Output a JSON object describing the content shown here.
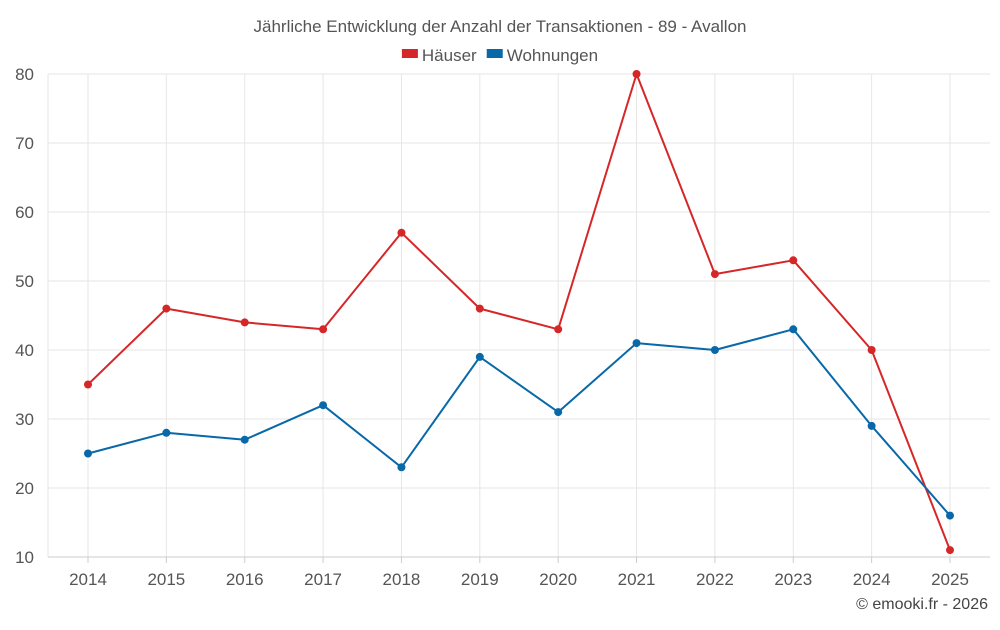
{
  "chart_data": {
    "type": "line",
    "title": "Jährliche Entwicklung der Anzahl der Transaktionen - 89 - Avallon",
    "categories": [
      "2014",
      "2015",
      "2016",
      "2017",
      "2018",
      "2019",
      "2020",
      "2021",
      "2022",
      "2023",
      "2024",
      "2025"
    ],
    "series": [
      {
        "name": "Häuser",
        "color": "#d62728",
        "values": [
          35,
          46,
          44,
          43,
          57,
          46,
          43,
          80,
          51,
          53,
          40,
          11
        ]
      },
      {
        "name": "Wohnungen",
        "color": "#0868a8",
        "values": [
          25,
          28,
          27,
          32,
          23,
          39,
          31,
          41,
          40,
          43,
          29,
          16
        ]
      }
    ],
    "ylim": [
      10,
      80
    ],
    "yticks": [
      10,
      20,
      30,
      40,
      50,
      60,
      70,
      80
    ],
    "xlabel": "",
    "ylabel": "",
    "grid": true,
    "legend": "top-center"
  },
  "credit": "© emooki.fr - 2026"
}
